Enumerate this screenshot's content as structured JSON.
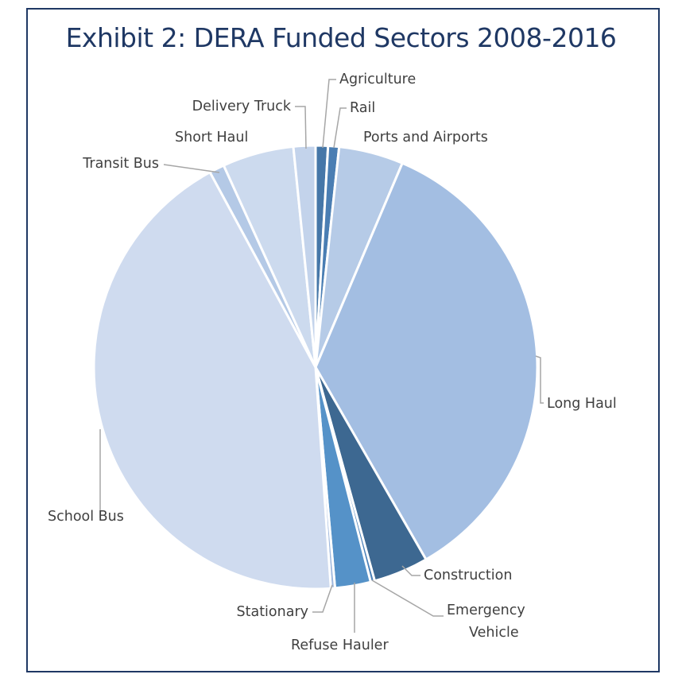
{
  "chart_data": {
    "type": "pie",
    "title": "Exhibit 2: DERA Funded Sectors 2008-2016",
    "start": "12 o'clock, clockwise",
    "slices": [
      {
        "label": "Agriculture",
        "value": 0.9,
        "color": "#4677a8"
      },
      {
        "label": "Rail",
        "value": 0.8,
        "color": "#4a7eb3"
      },
      {
        "label": "Ports and Airports",
        "value": 4.7,
        "color": "#b6cbe7"
      },
      {
        "label": "Long Haul",
        "value": 35.3,
        "color": "#a3bee2"
      },
      {
        "label": "Construction",
        "value": 4.0,
        "color": "#3d6891"
      },
      {
        "label": "Emergency Vehicle",
        "value": 0.3,
        "color": "#4a80b8"
      },
      {
        "label": "Refuse Hauler",
        "value": 2.6,
        "color": "#5592c8"
      },
      {
        "label": "Stationary",
        "value": 0.3,
        "color": "#9fb8dd"
      },
      {
        "label": "School Bus",
        "value": 43.2,
        "color": "#cfdbef"
      },
      {
        "label": "Transit Bus",
        "value": 1.1,
        "color": "#b4c9e6"
      },
      {
        "label": "Short Haul",
        "value": 5.2,
        "color": "#ccdaee"
      },
      {
        "label": "Delivery Truck",
        "value": 1.6,
        "color": "#c3d3eb"
      }
    ],
    "legend": "none (leader-line data labels)"
  }
}
